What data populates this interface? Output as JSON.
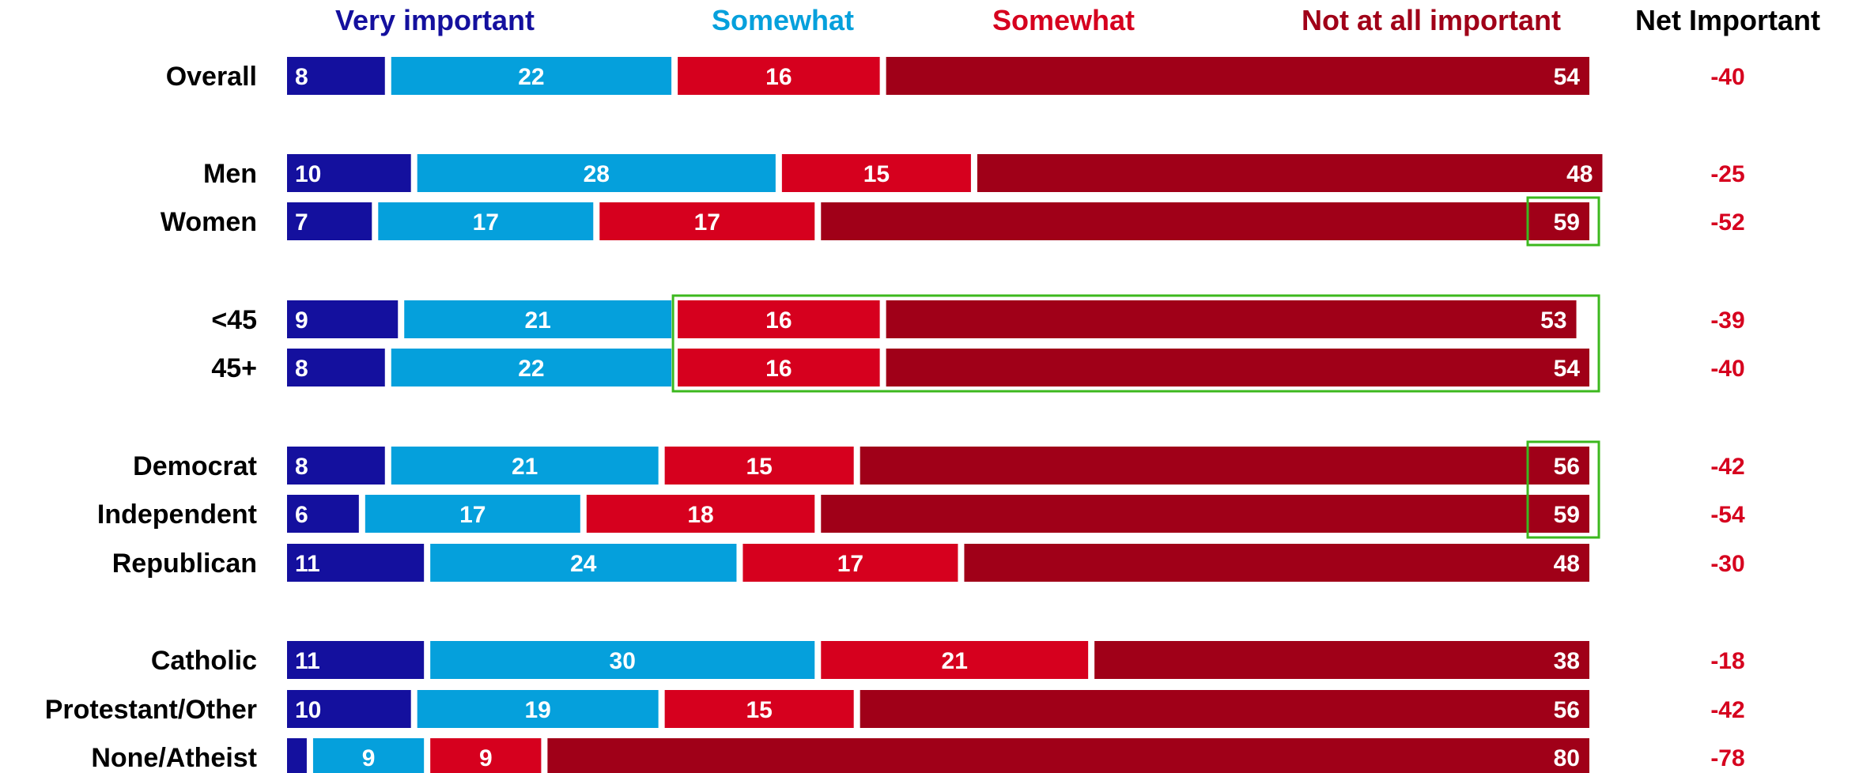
{
  "chart_data": {
    "type": "bar",
    "orientation": "horizontal",
    "stacked": true,
    "xlim": [
      0,
      100
    ],
    "legend_placement": "top",
    "series": [
      {
        "name": "Very important",
        "color": "#14109e"
      },
      {
        "name": "Somewhat",
        "color": "#05a0dc"
      },
      {
        "name": "Somewhat",
        "color": "#d6001e"
      },
      {
        "name": "Not at all important",
        "color": "#a00018"
      }
    ],
    "net_column": {
      "header": "Net Important",
      "color": "#d6001e"
    },
    "rows": [
      {
        "label": "Overall",
        "values": [
          8,
          22,
          16,
          54
        ],
        "net": "-40",
        "labels": [
          "8",
          "22",
          "16",
          "54"
        ],
        "group": 0
      },
      {
        "label": "Men",
        "values": [
          10,
          28,
          15,
          48
        ],
        "net": "-25",
        "labels": [
          "10",
          "28",
          "15",
          "48"
        ],
        "group": 1
      },
      {
        "label": "Women",
        "values": [
          7,
          17,
          17,
          59
        ],
        "net": "-52",
        "labels": [
          "7",
          "17",
          "17",
          "59"
        ],
        "group": 1
      },
      {
        "label": "<45",
        "values": [
          9,
          21,
          16,
          53
        ],
        "net": "-39",
        "labels": [
          "9",
          "21",
          "16",
          "53"
        ],
        "group": 2
      },
      {
        "label": "45+",
        "values": [
          8,
          22,
          16,
          54
        ],
        "net": "-40",
        "labels": [
          "8",
          "22",
          "16",
          "54"
        ],
        "group": 2
      },
      {
        "label": "Democrat",
        "values": [
          8,
          21,
          15,
          56
        ],
        "net": "-42",
        "labels": [
          "8",
          "21",
          "15",
          "56"
        ],
        "group": 3
      },
      {
        "label": "Independent",
        "values": [
          6,
          17,
          18,
          59
        ],
        "net": "-54",
        "labels": [
          "6",
          "17",
          "18",
          "59"
        ],
        "group": 3
      },
      {
        "label": "Republican",
        "values": [
          11,
          24,
          17,
          48
        ],
        "net": "-30",
        "labels": [
          "11",
          "24",
          "17",
          "48"
        ],
        "group": 3
      },
      {
        "label": "Catholic",
        "values": [
          11,
          30,
          21,
          38
        ],
        "net": "-18",
        "labels": [
          "11",
          "30",
          "21",
          "38"
        ],
        "group": 4
      },
      {
        "label": "Protestant/Other",
        "values": [
          10,
          19,
          15,
          56
        ],
        "net": "-42",
        "labels": [
          "10",
          "19",
          "15",
          "56"
        ],
        "group": 4
      },
      {
        "label": "None/Atheist",
        "values": [
          2,
          9,
          9,
          80
        ],
        "net": "-78",
        "labels": [
          "",
          "9",
          "9",
          "80"
        ],
        "group": 4
      }
    ],
    "highlights": [
      {
        "rows": [
          "Women"
        ],
        "segments": [
          3,
          3
        ],
        "note": "last segment value"
      },
      {
        "rows": [
          "<45",
          "45+"
        ],
        "segments": [
          2,
          3
        ]
      },
      {
        "rows": [
          "Democrat",
          "Independent"
        ],
        "segments": [
          3,
          3
        ],
        "note": "last segment value"
      }
    ],
    "highlight_color": "#3cb81e"
  }
}
